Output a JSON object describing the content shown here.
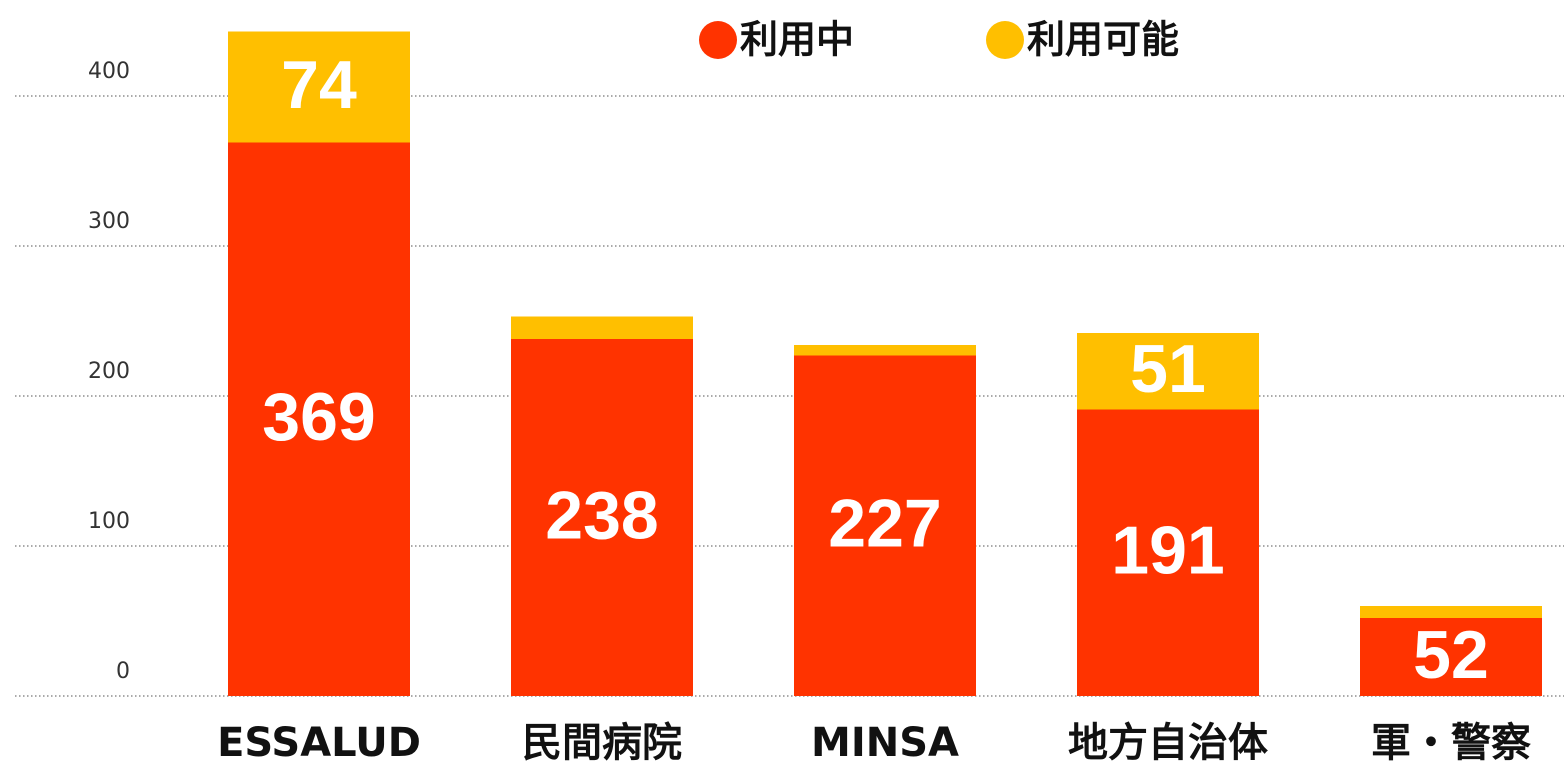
{
  "chart_data": {
    "type": "stacked_bar",
    "categories": [
      "ESSALUD",
      "民間病院",
      "MINSA",
      "地方自治体",
      "軍・警察"
    ],
    "series": [
      {
        "name": "利用中",
        "color": "#ff3300",
        "values": [
          369,
          238,
          227,
          191,
          52
        ],
        "value_labels": [
          "369",
          "238",
          "227",
          "191",
          "52"
        ]
      },
      {
        "name": "利用可能",
        "color": "#ffbf00",
        "values": [
          74,
          15,
          7,
          51,
          8
        ],
        "value_labels": [
          "74",
          null,
          null,
          "51",
          null
        ]
      }
    ],
    "ylim": [
      0,
      400
    ],
    "yticks": [
      0,
      100,
      200,
      300,
      400
    ],
    "grid": true,
    "legend": "top"
  }
}
